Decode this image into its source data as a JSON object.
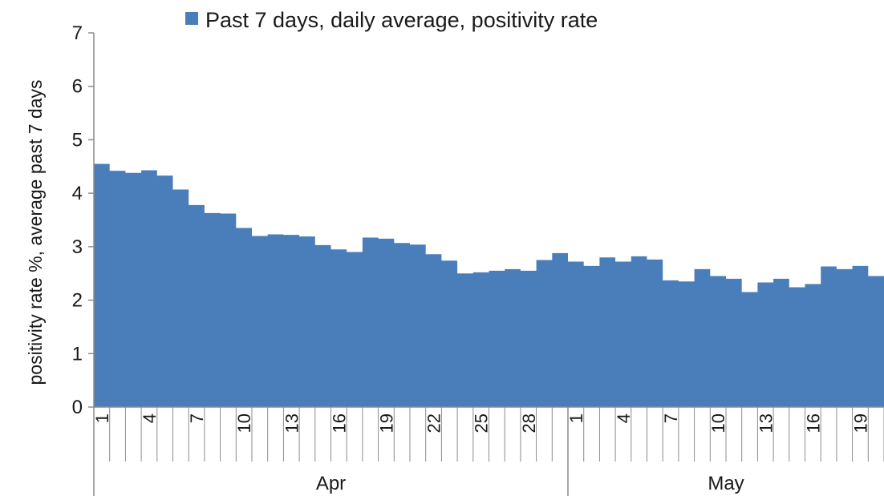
{
  "chart_data": {
    "type": "area",
    "legend": {
      "label": "Past 7 days, daily average, positivity rate",
      "position": "top",
      "color": "#4a7ebb"
    },
    "ylabel": "positivity rate %, average past 7 days",
    "ylim": [
      0,
      7
    ],
    "yticks": [
      "0",
      "1",
      "2",
      "3",
      "4",
      "5",
      "6",
      "7"
    ],
    "grid": false,
    "xtick_labels": [
      "1",
      "4",
      "7",
      "10",
      "13",
      "16",
      "19",
      "22",
      "25",
      "28",
      "1",
      "4",
      "7",
      "10",
      "13",
      "16",
      "19"
    ],
    "months": [
      "Apr",
      "May"
    ],
    "series": [
      {
        "color": "#4a7ebb",
        "x": [
          "Apr 1",
          "Apr 2",
          "Apr 3",
          "Apr 4",
          "Apr 5",
          "Apr 6",
          "Apr 7",
          "Apr 8",
          "Apr 9",
          "Apr 10",
          "Apr 11",
          "Apr 12",
          "Apr 13",
          "Apr 14",
          "Apr 15",
          "Apr 16",
          "Apr 17",
          "Apr 18",
          "Apr 19",
          "Apr 20",
          "Apr 21",
          "Apr 22",
          "Apr 23",
          "Apr 24",
          "Apr 25",
          "Apr 26",
          "Apr 27",
          "Apr 28",
          "Apr 29",
          "Apr 30",
          "May 1",
          "May 2",
          "May 3",
          "May 4",
          "May 5",
          "May 6",
          "May 7",
          "May 8",
          "May 9",
          "May 10",
          "May 11",
          "May 12",
          "May 13",
          "May 14",
          "May 15",
          "May 16",
          "May 17",
          "May 18",
          "May 19",
          "May 20"
        ],
        "values": [
          4.55,
          4.42,
          4.38,
          4.43,
          4.33,
          4.07,
          3.78,
          3.63,
          3.62,
          3.35,
          3.2,
          3.23,
          3.22,
          3.19,
          3.03,
          2.95,
          2.9,
          3.17,
          3.15,
          3.07,
          3.04,
          2.86,
          2.74,
          2.5,
          2.52,
          2.55,
          2.58,
          2.55,
          2.75,
          2.88,
          2.72,
          2.64,
          2.8,
          2.72,
          2.82,
          2.76,
          2.37,
          2.35,
          2.58,
          2.45,
          2.4,
          2.15,
          2.33,
          2.4,
          2.24,
          2.3,
          2.63,
          2.58,
          2.64,
          2.45
        ]
      }
    ]
  }
}
